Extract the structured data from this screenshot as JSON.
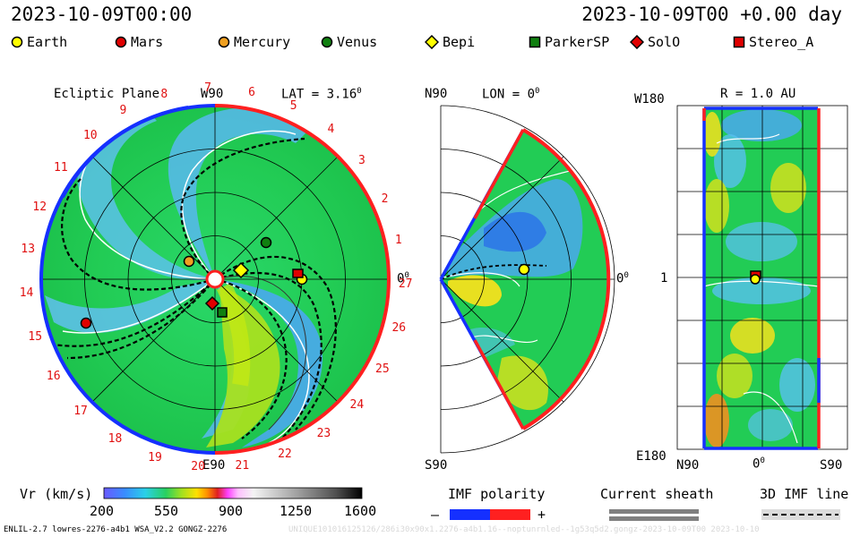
{
  "header": {
    "date_left": "2023-10-09T00:00",
    "date_right": "2023-10-09T00 +0.00 day"
  },
  "legend": [
    {
      "label": "Earth",
      "color": "#ffff00",
      "shape": "circle"
    },
    {
      "label": "Mars",
      "color": "#e00000",
      "shape": "circle"
    },
    {
      "label": "Mercury",
      "color": "#f0a020",
      "shape": "circle"
    },
    {
      "label": "Venus",
      "color": "#108010",
      "shape": "circle"
    },
    {
      "label": "Bepi",
      "color": "#ffff00",
      "shape": "diamond"
    },
    {
      "label": "ParkerSP",
      "color": "#108010",
      "shape": "square"
    },
    {
      "label": "SolO",
      "color": "#e00000",
      "shape": "diamond"
    },
    {
      "label": "Stereo_A",
      "color": "#e00000",
      "shape": "square"
    }
  ],
  "ecliptic_panel": {
    "title": "Ecliptic Plane",
    "lat_label": "LAT = 3.16",
    "top_label": "W90",
    "bottom_label": "E90",
    "right_label": "0",
    "carrington_ticks": [
      "1",
      "2",
      "3",
      "4",
      "5",
      "6",
      "7",
      "8",
      "9",
      "10",
      "11",
      "12",
      "13",
      "14",
      "15",
      "16",
      "17",
      "18",
      "19",
      "20",
      "21",
      "22",
      "23",
      "24",
      "25",
      "26",
      "27"
    ]
  },
  "meridional_panel": {
    "lon_label": "LON = 0",
    "north_label": "N90",
    "south_label": "S90",
    "right_label": "0"
  },
  "sphere_panel": {
    "r_label": "R = 1.0 AU",
    "top_left_label": "W180",
    "mid_left_label": "1",
    "bottom_left_label": "E180",
    "x_labels": [
      "N90",
      "0",
      "S90"
    ]
  },
  "colorbar": {
    "label": "Vr (km/s)",
    "ticks": [
      "200",
      "550",
      "900",
      "1250",
      "1600"
    ],
    "min": 200,
    "max": 1600
  },
  "imf_legend": {
    "polarity_title": "IMF polarity",
    "minus": "–",
    "plus": "+",
    "sheath_title": "Current sheath",
    "line_title": "3D IMF line"
  },
  "footer": {
    "left": "ENLIL-2.7 lowres-2276-a4b1 WSA_V2.2 GONGZ-2276",
    "right": "UNIQUE101016125126/286i30x90x1.2276-a4b1.16--noptunrnled--1g53q5d2.gongz-2023-10-09T00   2023-10-10"
  }
}
